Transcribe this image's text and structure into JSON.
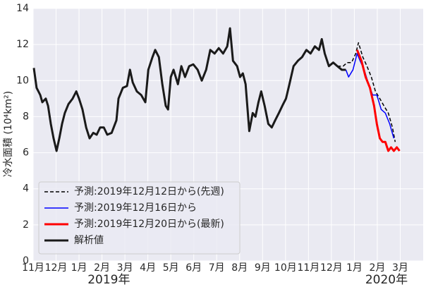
{
  "chart_data": {
    "type": "line",
    "ylabel": "冷水面積 (10⁴km²)",
    "xlim": [
      0,
      17
    ],
    "ylim": [
      0,
      14
    ],
    "yticks": [
      0,
      2,
      4,
      6,
      8,
      10,
      12,
      14
    ],
    "xticks": [
      {
        "value": 0,
        "label": "11月"
      },
      {
        "value": 1,
        "label": "12月"
      },
      {
        "value": 2,
        "label": "1月"
      },
      {
        "value": 3,
        "label": "2月"
      },
      {
        "value": 4,
        "label": "3月"
      },
      {
        "value": 5,
        "label": "4月"
      },
      {
        "value": 6,
        "label": "5月"
      },
      {
        "value": 7,
        "label": "6月"
      },
      {
        "value": 8,
        "label": "7月"
      },
      {
        "value": 9,
        "label": "8月"
      },
      {
        "value": 10,
        "label": "9月"
      },
      {
        "value": 11,
        "label": "10月"
      },
      {
        "value": 12,
        "label": "11月"
      },
      {
        "value": 13,
        "label": "12月"
      },
      {
        "value": 14,
        "label": "1月"
      },
      {
        "value": 15,
        "label": "2月"
      },
      {
        "value": 16,
        "label": "3月"
      }
    ],
    "year_labels": [
      {
        "x": 3.3,
        "label": "2019年"
      },
      {
        "x": 15.4,
        "label": "2020年"
      }
    ],
    "grid": true,
    "legend": "lower left",
    "series": [
      {
        "name": "予測:2019年12月12日から(先週)",
        "color": "#000000",
        "linestyle": "dashed",
        "width": 1.5,
        "x": [
          13.26,
          13.51,
          13.69,
          13.88,
          14.06,
          14.18,
          14.37,
          14.55,
          14.74,
          14.92,
          15.11,
          15.29,
          15.48,
          15.66,
          15.78
        ],
        "values": [
          10.8,
          10.8,
          11.0,
          11.0,
          11.5,
          12.1,
          11.3,
          10.8,
          10.2,
          9.4,
          9.0,
          8.6,
          8.2,
          7.4,
          6.6
        ]
      },
      {
        "name": "予測:2019年12月16日から",
        "color": "#0000ff",
        "linestyle": "solid",
        "width": 1.5,
        "x": [
          13.63,
          13.75,
          13.94,
          14.12,
          14.25,
          14.43,
          14.62,
          14.8,
          14.98,
          15.17,
          15.35,
          15.54,
          15.72
        ],
        "values": [
          10.6,
          10.2,
          10.6,
          11.5,
          11.1,
          10.6,
          9.8,
          9.2,
          9.2,
          8.4,
          8.2,
          7.6,
          6.8
        ]
      },
      {
        "name": "予測:2019年12月20日から(最新)",
        "color": "#ff0000",
        "linestyle": "solid",
        "width": 3,
        "x": [
          14.12,
          14.31,
          14.49,
          14.68,
          14.86,
          14.98,
          15.11,
          15.23,
          15.35,
          15.48,
          15.6,
          15.72,
          15.85,
          15.97
        ],
        "values": [
          11.7,
          11.1,
          10.2,
          9.6,
          8.6,
          7.6,
          6.8,
          6.6,
          6.6,
          6.1,
          6.3,
          6.1,
          6.3,
          6.1
        ]
      },
      {
        "name": "解析値",
        "color": "#1a1a1a",
        "linestyle": "solid",
        "width": 3,
        "x": [
          0.03,
          0.15,
          0.31,
          0.4,
          0.55,
          0.65,
          0.77,
          0.89,
          1.02,
          1.14,
          1.26,
          1.38,
          1.54,
          1.72,
          1.88,
          2.0,
          2.15,
          2.31,
          2.46,
          2.62,
          2.77,
          2.92,
          3.08,
          3.23,
          3.42,
          3.63,
          3.72,
          3.91,
          4.09,
          4.22,
          4.34,
          4.52,
          4.71,
          4.89,
          5.02,
          5.2,
          5.32,
          5.48,
          5.63,
          5.78,
          5.88,
          6.0,
          6.12,
          6.31,
          6.46,
          6.62,
          6.8,
          6.98,
          7.17,
          7.35,
          7.54,
          7.72,
          7.91,
          8.09,
          8.28,
          8.46,
          8.58,
          8.71,
          8.89,
          9.02,
          9.14,
          9.26,
          9.42,
          9.57,
          9.69,
          9.82,
          9.94,
          10.09,
          10.25,
          10.4,
          10.55,
          10.71,
          10.86,
          11.02,
          11.17,
          11.35,
          11.54,
          11.72,
          11.91,
          12.09,
          12.28,
          12.46,
          12.58,
          12.71,
          12.89,
          13.08,
          13.26,
          13.45,
          13.63
        ],
        "values": [
          10.7,
          9.6,
          9.2,
          8.8,
          9.0,
          8.6,
          7.6,
          6.8,
          6.1,
          6.8,
          7.6,
          8.2,
          8.7,
          9.0,
          9.4,
          9.0,
          8.4,
          7.4,
          6.8,
          7.1,
          7.0,
          7.4,
          7.4,
          7.0,
          7.1,
          7.8,
          9.0,
          9.6,
          9.7,
          10.6,
          9.9,
          9.4,
          9.2,
          8.8,
          10.6,
          11.3,
          11.7,
          11.3,
          9.8,
          8.6,
          8.4,
          10.2,
          10.6,
          9.8,
          10.8,
          10.2,
          10.8,
          10.9,
          10.6,
          10.0,
          10.6,
          11.7,
          11.5,
          11.8,
          11.5,
          11.9,
          12.9,
          11.1,
          10.8,
          10.2,
          10.4,
          9.8,
          7.2,
          8.2,
          8.0,
          8.8,
          9.4,
          8.6,
          7.6,
          7.4,
          7.8,
          8.2,
          8.6,
          9.0,
          9.8,
          10.8,
          11.1,
          11.3,
          11.7,
          11.5,
          11.9,
          11.7,
          12.3,
          11.5,
          10.8,
          11.0,
          10.8,
          10.6,
          10.6
        ]
      }
    ]
  }
}
